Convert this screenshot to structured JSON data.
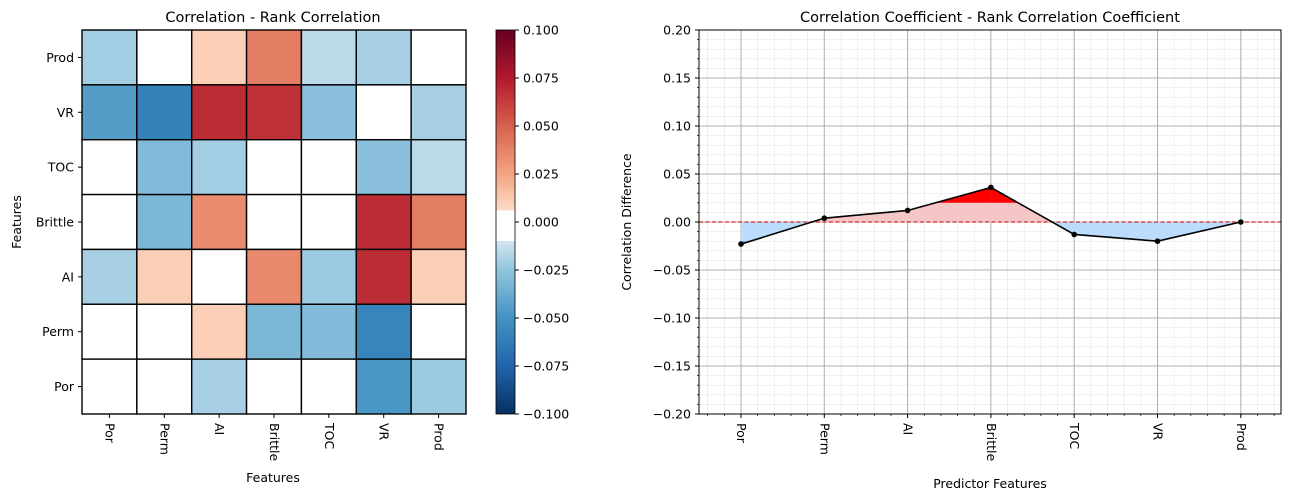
{
  "chart_data": [
    {
      "type": "heatmap",
      "title": "Correlation - Rank Correlation",
      "xlabel": "Features",
      "ylabel": "Features",
      "x_categories": [
        "Por",
        "Perm",
        "AI",
        "Brittle",
        "TOC",
        "VR",
        "Prod"
      ],
      "y_categories": [
        "Prod",
        "VR",
        "TOC",
        "Brittle",
        "AI",
        "Perm",
        "Por"
      ],
      "values": [
        [
          -0.02,
          0.0,
          0.01,
          0.04,
          -0.012,
          -0.018,
          0.0
        ],
        [
          -0.045,
          -0.06,
          0.068,
          0.066,
          -0.028,
          0.0,
          -0.018
        ],
        [
          0.0,
          -0.03,
          -0.02,
          0.0,
          0.0,
          -0.028,
          -0.012
        ],
        [
          0.0,
          -0.032,
          0.034,
          0.0,
          0.0,
          0.068,
          0.04
        ],
        [
          -0.018,
          0.01,
          0.0,
          0.035,
          -0.022,
          0.068,
          0.01
        ],
        [
          0.0,
          0.0,
          0.01,
          -0.032,
          -0.03,
          -0.058,
          0.0
        ],
        [
          0.0,
          0.0,
          -0.018,
          0.0,
          0.0,
          -0.048,
          -0.022
        ]
      ],
      "colorbar": {
        "vmin": -0.1,
        "vmax": 0.1,
        "colormap": "RdBu_r",
        "ticks": [
          "0.100",
          "0.075",
          "0.050",
          "0.025",
          "0.000",
          "−0.025",
          "−0.050",
          "−0.075",
          "−0.100"
        ]
      }
    },
    {
      "type": "line",
      "title": "Correlation Coefficient - Rank Correlation Coefficient",
      "xlabel": "Predictor Features",
      "ylabel": "Correlation Difference",
      "categories": [
        "Por",
        "Perm",
        "AI",
        "Brittle",
        "TOC",
        "VR",
        "Prod"
      ],
      "values": [
        -0.023,
        0.004,
        0.012,
        0.036,
        -0.013,
        -0.02,
        0.0
      ],
      "ylim": [
        -0.2,
        0.2
      ],
      "y_ticks": [
        "0.20",
        "0.15",
        "0.10",
        "0.05",
        "0.00",
        "−0.05",
        "−0.10",
        "−0.15",
        "−0.20"
      ],
      "grid": "major and minor",
      "reference_line": 0.0,
      "colors": {
        "line": "#000000",
        "reference": "#d62728",
        "positive_fill": "#ff0000",
        "positive_band": "#f4c6c6",
        "negative_fill": "#6aa9f2",
        "negative_band": "#bcdcfd"
      }
    }
  ]
}
